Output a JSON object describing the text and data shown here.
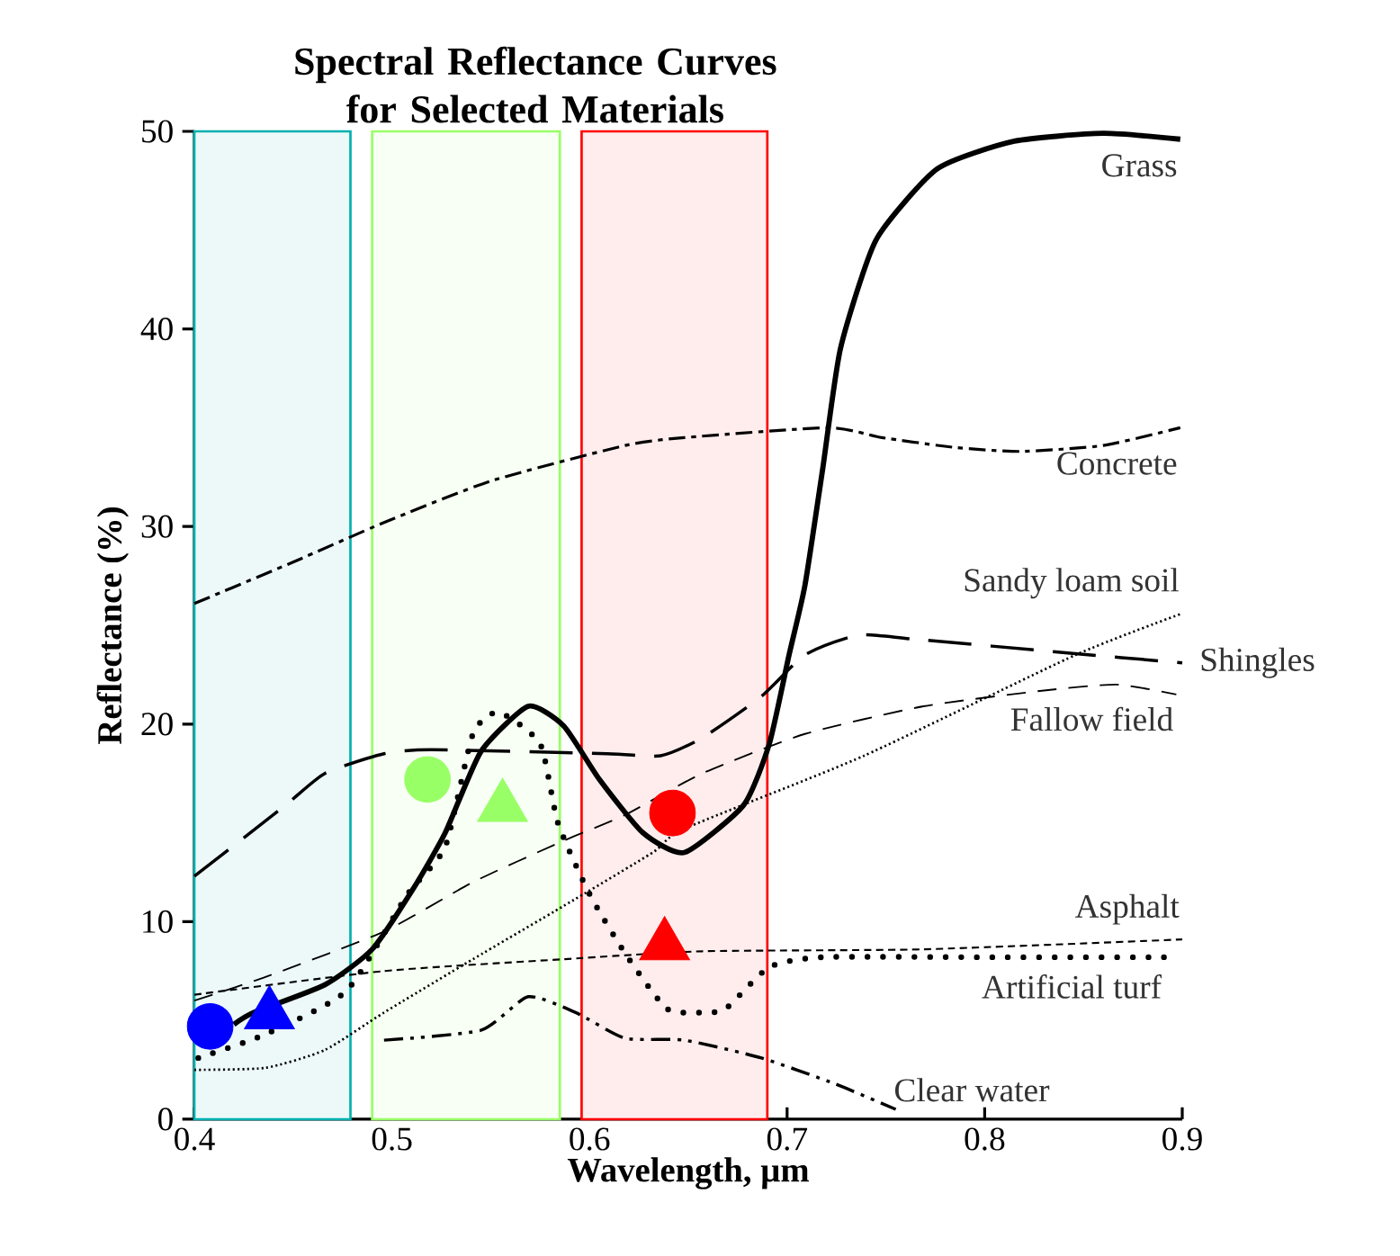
{
  "chart_data": {
    "type": "line",
    "title": "Spectral Reflectance Curves for Selected Materials",
    "xlabel": "Wavelength, µm",
    "ylabel": "Reflectance (%)",
    "xlim": [
      0.4,
      0.9
    ],
    "ylim": [
      0,
      50
    ],
    "xticks": [
      0.4,
      0.5,
      0.6,
      0.7,
      0.8,
      0.9
    ],
    "yticks": [
      0,
      10,
      20,
      30,
      40,
      50
    ],
    "series": [
      {
        "name": "Grass",
        "color": "#000000",
        "line_style": "solid",
        "x": [
          0.42,
          0.43,
          0.466,
          0.49,
          0.511,
          0.527,
          0.545,
          0.569,
          0.587,
          0.605,
          0.627,
          0.648,
          0.678,
          0.691,
          0.701,
          0.709,
          0.718,
          0.727,
          0.745,
          0.776,
          0.815,
          0.86,
          0.899
        ],
        "values": [
          4.8,
          5.4,
          6.8,
          8.6,
          11.7,
          14.5,
          18.6,
          20.9,
          19.9,
          17.2,
          14.5,
          13.5,
          15.9,
          19,
          23.5,
          27,
          32.9,
          39,
          44.5,
          48.1,
          49.5,
          49.9,
          49.6
        ]
      },
      {
        "name": "Concrete",
        "color": "#000000",
        "line_style": "dashdot",
        "x": [
          0.4,
          0.45,
          0.496,
          0.55,
          0.618,
          0.648,
          0.721,
          0.748,
          0.785,
          0.818,
          0.86,
          0.899
        ],
        "values": [
          26.1,
          28.2,
          30.2,
          32.3,
          34.1,
          34.5,
          35,
          34.5,
          34,
          33.8,
          34.1,
          35
        ]
      },
      {
        "name": "Sandy loam soil",
        "color": "#000000",
        "line_style": "dotted",
        "x": [
          0.4,
          0.436,
          0.466,
          0.496,
          0.541,
          0.587,
          0.632,
          0.648,
          0.739,
          0.846,
          0.9
        ],
        "values": [
          2.5,
          2.6,
          3.5,
          5.4,
          8.1,
          10.8,
          13.5,
          14.7,
          18.4,
          23.5,
          25.6
        ]
      },
      {
        "name": "Shingles",
        "color": "#000000",
        "line_style": "longdash",
        "x": [
          0.4,
          0.445,
          0.466,
          0.496,
          0.52,
          0.609,
          0.636,
          0.657,
          0.687,
          0.709,
          0.736,
          0.764,
          0.842,
          0.9
        ],
        "values": [
          12.3,
          15.8,
          17.5,
          18.5,
          18.7,
          18.5,
          18.4,
          19.3,
          21.4,
          23.5,
          24.5,
          24.3,
          23.6,
          23.1
        ]
      },
      {
        "name": "Fallow field",
        "color": "#000000",
        "line_style": "dashed",
        "x": [
          0.4,
          0.436,
          0.496,
          0.541,
          0.587,
          0.618,
          0.657,
          0.709,
          0.769,
          0.83,
          0.867,
          0.897
        ],
        "values": [
          6,
          7.2,
          9.5,
          12,
          14.1,
          15.4,
          17.5,
          19.5,
          20.9,
          21.7,
          22,
          21.5
        ]
      },
      {
        "name": "Asphalt",
        "color": "#000000",
        "line_style": "finedashed",
        "x": [
          0.4,
          0.496,
          0.587,
          0.657,
          0.769,
          0.9
        ],
        "values": [
          6.3,
          7.5,
          8.1,
          8.5,
          8.6,
          9.1
        ]
      },
      {
        "name": "Artificial turf",
        "color": "#000000",
        "line_style": "heavydotted",
        "x": [
          0.402,
          0.436,
          0.477,
          0.508,
          0.527,
          0.541,
          0.554,
          0.575,
          0.584,
          0.6,
          0.618,
          0.639,
          0.657,
          0.669,
          0.691,
          0.718,
          0.8,
          0.891
        ],
        "values": [
          3.1,
          4.3,
          6.5,
          11.4,
          13.8,
          19.5,
          20.6,
          19,
          15,
          11.4,
          8.4,
          5.6,
          5.4,
          5.6,
          7.7,
          8.2,
          8.2,
          8.2
        ]
      },
      {
        "name": "Clear water",
        "color": "#000000",
        "line_style": "dashdotdot",
        "x": [
          0.496,
          0.545,
          0.569,
          0.593,
          0.618,
          0.648,
          0.687,
          0.724,
          0.755
        ],
        "values": [
          4,
          4.5,
          6.2,
          5.4,
          4.1,
          4,
          3.1,
          1.8,
          0.5
        ]
      },
      {
        "type": "scatter",
        "marker": "circle",
        "colors": [
          "#0000ff",
          "#99ff66",
          "#ff0000"
        ],
        "x": [
          0.408,
          0.518,
          0.642
        ],
        "values": [
          4.7,
          17.2,
          15.5
        ]
      },
      {
        "type": "scatter",
        "marker": "triangle",
        "colors": [
          "#0000ff",
          "#99ff66",
          "#ff0000"
        ],
        "x": [
          0.438,
          0.556,
          0.638
        ],
        "values": [
          5.3,
          15.8,
          8.8
        ]
      }
    ],
    "bands": [
      {
        "axis": "x",
        "from": 0.4,
        "to": 0.479,
        "color": "#00b0b0"
      },
      {
        "axis": "x",
        "from": 0.49,
        "to": 0.585,
        "color": "#99ff66"
      },
      {
        "axis": "x",
        "from": 0.596,
        "to": 0.69,
        "color": "#ff0000"
      }
    ]
  }
}
